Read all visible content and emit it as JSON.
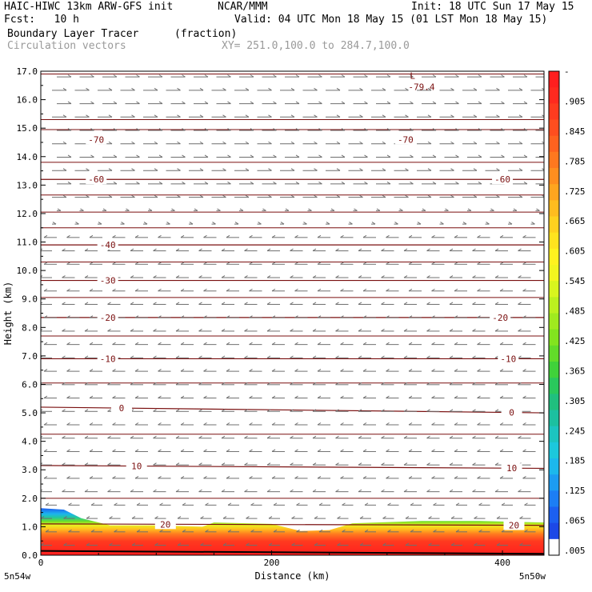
{
  "header": {
    "model": "HAIC-HIWC 13km ARW-GFS init",
    "org": "NCAR/MMM",
    "init": "Init: 18 UTC Sun 17 May 15",
    "fcst": "Fcst:   10 h",
    "valid": "Valid: 04 UTC Mon 18 May 15 (01 LST Mon 18 May 15)",
    "field": "Boundary Layer Tracer",
    "units": "(fraction)",
    "vectors": "Circulation vectors",
    "xy": "XY= 251.0,100.0 to 284.7,100.0"
  },
  "colors": {
    "contour": "#7a0f0f",
    "vector": "#6f6f6f"
  },
  "chart_data": {
    "type": "heatmap",
    "xlabel": "Distance (km)",
    "ylabel": "Height (km)",
    "xlim": [
      0,
      436
    ],
    "ylim": [
      0,
      17
    ],
    "x_ticks": [
      0,
      200,
      400
    ],
    "y_ticks": [
      "0.0",
      "1.0",
      "2.0",
      "3.0",
      "4.0",
      "5.0",
      "6.0",
      "7.0",
      "8.0",
      "9.0",
      "10.0",
      "11.0",
      "12.0",
      "13.0",
      "14.0",
      "15.0",
      "16.0",
      "17.0"
    ],
    "x_endpoints": [
      "5n54w",
      "5n50w"
    ],
    "colorbar_labels": [
      "-",
      ".905",
      ".845",
      ".785",
      ".725",
      ".665",
      ".605",
      ".545",
      ".485",
      ".425",
      ".365",
      ".305",
      ".245",
      ".185",
      ".125",
      ".065",
      ".005"
    ],
    "colorbar_colors": [
      "#ff1f1f",
      "#ff2a1f",
      "#ff3b1f",
      "#ff4e1f",
      "#ff621f",
      "#ff781f",
      "#ff8e1f",
      "#ffa51f",
      "#ffbc1f",
      "#ffd11f",
      "#ffe31f",
      "#fff21f",
      "#f2f51f",
      "#d8f51f",
      "#bcf01f",
      "#a0ea1f",
      "#82e41f",
      "#62dc2a",
      "#40d23a",
      "#2ac85c",
      "#20bf7e",
      "#1cc0a0",
      "#1cc4c0",
      "#1cc8dc",
      "#1cb8ec",
      "#1c9cf2",
      "#1c7ef4",
      "#1c60f0",
      "#1c48e6",
      "#ffffff"
    ],
    "isotherms": [
      {
        "label": "-70",
        "x1": 478,
        "y1": 14.6,
        "x2": 436,
        "y2": 14.6,
        "label_x": [
          48,
          316
        ]
      },
      {
        "label": "-60",
        "x1": 0,
        "y1": 13.2,
        "x2": 436,
        "y2": 13.2,
        "label_x": [
          48,
          400
        ]
      },
      {
        "label": "-40",
        "x1": 0,
        "y1": 10.9,
        "x2": 436,
        "y2": 10.9,
        "label_x": [
          58
        ]
      },
      {
        "label": "-30",
        "x1": 0,
        "y1": 9.65,
        "x2": 436,
        "y2": 9.65,
        "label_x": [
          58
        ]
      },
      {
        "label": "-20",
        "x1": 0,
        "y1": 8.35,
        "x2": 436,
        "y2": 8.35,
        "label_x": [
          58,
          398
        ]
      },
      {
        "label": "-10",
        "x1": 0,
        "y1": 6.9,
        "x2": 436,
        "y2": 6.9,
        "label_x": [
          58,
          405
        ]
      },
      {
        "label": "0",
        "x1": 0,
        "y1": 5.2,
        "x2": 436,
        "y2": 5.0,
        "label_x": [
          70,
          408
        ]
      },
      {
        "label": "10",
        "x1": 0,
        "y1": 3.15,
        "x2": 436,
        "y2": 3.05,
        "label_x": [
          83,
          408
        ]
      },
      {
        "label": "20",
        "x1": 0,
        "y1": 1.1,
        "x2": 436,
        "y2": 1.05,
        "label_x": [
          108,
          410
        ]
      }
    ],
    "extra_contour_heights": [
      16.9,
      15.3,
      14.95,
      13.8,
      12.65,
      12.05,
      11.5,
      10.3,
      9.05,
      7.7,
      6.05,
      4.25,
      2.0
    ],
    "low_marker": {
      "symbol": "L",
      "value": "-79.4",
      "x": 324,
      "y": 16.65
    },
    "tracer_top": [
      [
        0,
        1.65
      ],
      [
        20,
        1.6
      ],
      [
        35,
        1.3
      ],
      [
        60,
        1.05
      ],
      [
        100,
        1.05
      ],
      [
        140,
        1.0
      ],
      [
        150,
        1.15
      ],
      [
        200,
        1.1
      ],
      [
        225,
        0.85
      ],
      [
        250,
        0.88
      ],
      [
        270,
        1.12
      ],
      [
        330,
        1.2
      ],
      [
        380,
        1.2
      ],
      [
        436,
        1.15
      ]
    ]
  }
}
